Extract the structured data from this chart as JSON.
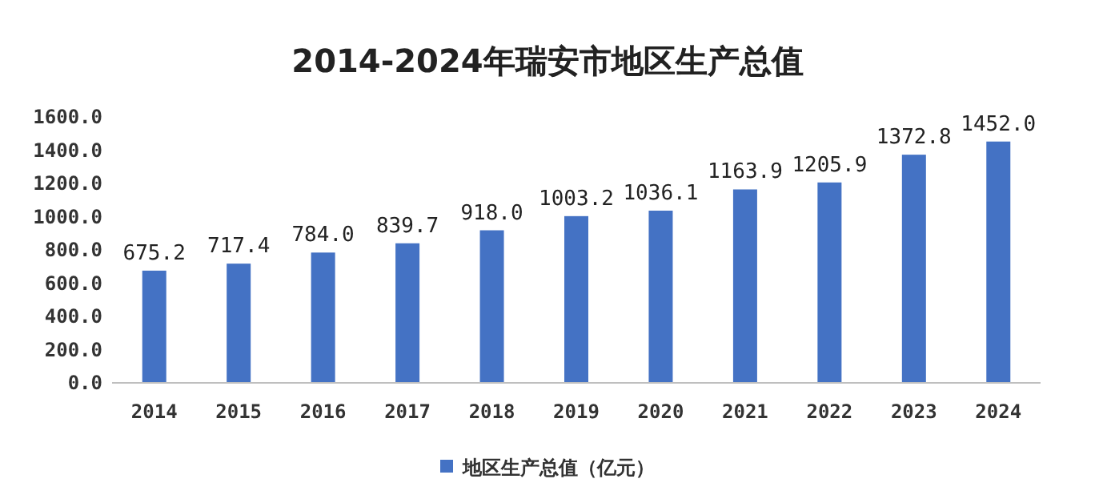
{
  "chart_data": {
    "type": "bar",
    "title": "2014-2024年瑞安市地区生产总值",
    "categories": [
      "2014",
      "2015",
      "2016",
      "2017",
      "2018",
      "2019",
      "2020",
      "2021",
      "2022",
      "2023",
      "2024"
    ],
    "series": [
      {
        "name": "地区生产总值（亿元）",
        "color": "#4472c4",
        "values": [
          675.2,
          717.4,
          784.0,
          839.7,
          918.0,
          1003.2,
          1036.1,
          1163.9,
          1205.9,
          1372.8,
          1452.0
        ],
        "value_labels": [
          "675.2",
          "717.4",
          "784.0",
          "839.7",
          "918.0",
          "1003.2",
          "1036.1",
          "1163.9",
          "1205.9",
          "1372.8",
          "1452.0"
        ]
      }
    ],
    "ylim": [
      0,
      1600
    ],
    "yticks": [
      {
        "value": 0,
        "label": "0.0"
      },
      {
        "value": 200,
        "label": "200.0"
      },
      {
        "value": 400,
        "label": "400.0"
      },
      {
        "value": 600,
        "label": "600.0"
      },
      {
        "value": 800,
        "label": "800.0"
      },
      {
        "value": 1000,
        "label": "1000.0"
      },
      {
        "value": 1200,
        "label": "1200.0"
      },
      {
        "value": 1400,
        "label": "1400.0"
      },
      {
        "value": 1600,
        "label": "1600.0"
      }
    ],
    "legend": "bottom"
  }
}
